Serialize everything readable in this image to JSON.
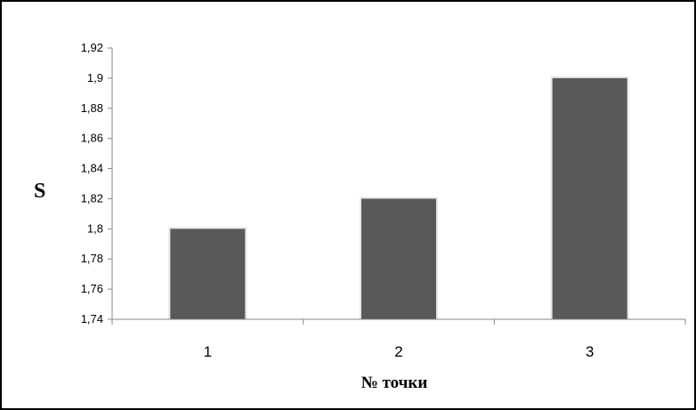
{
  "chart_data": {
    "type": "bar",
    "categories": [
      "1",
      "2",
      "3"
    ],
    "values": [
      1.8,
      1.82,
      1.9
    ],
    "xlabel": "№ точки",
    "ylabel": "S",
    "ylim": [
      1.74,
      1.92
    ],
    "yticks": [
      "1,74",
      "1,76",
      "1,78",
      "1,8",
      "1,82",
      "1,84",
      "1,86",
      "1,88",
      "1,9",
      "1,92"
    ],
    "grid": false,
    "legend": "none",
    "bar_color": "#595959"
  }
}
